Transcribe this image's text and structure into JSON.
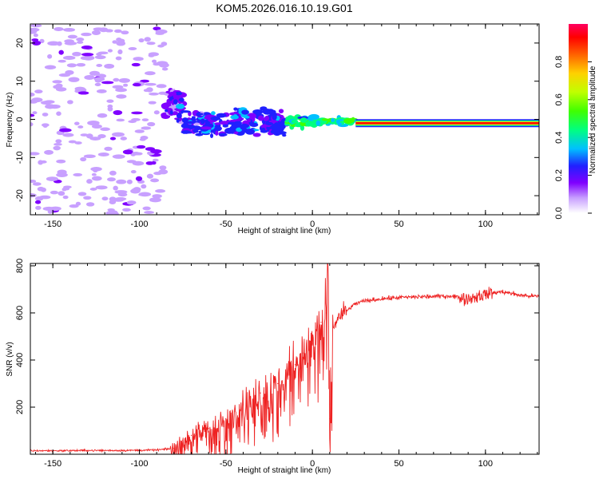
{
  "title": "KOM5.2026.016.10.19.G01",
  "chart_data": [
    {
      "type": "heatmap",
      "name": "spectrogram",
      "xlabel": "Height of straight line (km)",
      "ylabel": "Frequency (Hz)",
      "xlim": [
        -163,
        131
      ],
      "ylim": [
        -25,
        25
      ],
      "xticks": [
        -150,
        -100,
        -50,
        0,
        50,
        100
      ],
      "xtick_labels": [
        "-150",
        "-100",
        "-50",
        "0",
        "50",
        "100"
      ],
      "yticks": [
        -20,
        -10,
        0,
        10,
        20
      ],
      "ytick_labels": [
        "-20",
        "-10",
        "0",
        "10",
        "20"
      ],
      "colorbar": {
        "label": "Normalized spectral amplitude",
        "range": [
          0,
          1
        ],
        "ticks": [
          0,
          0.2,
          0.4,
          0.6,
          0.8
        ],
        "tick_labels": [
          "0.0",
          "0.2",
          "0.4",
          "0.6",
          "0.8"
        ],
        "colors": [
          "#ffffff",
          "#c8a0ff",
          "#8000ff",
          "#2020ff",
          "#00c0ff",
          "#00ff80",
          "#40ff00",
          "#c0ff00",
          "#ffd000",
          "#ff6000",
          "#ff0000",
          "#ff0060"
        ]
      },
      "features": [
        {
          "region": "noise",
          "x_range": [
            -163,
            -85
          ],
          "freq_range": [
            -25,
            25
          ],
          "amplitude": 0.05
        },
        {
          "region": "onset",
          "x_range": [
            -85,
            -75
          ],
          "freq_range": [
            -2,
            9
          ],
          "amplitude": 0.2
        },
        {
          "region": "broad",
          "x_range": [
            -75,
            -15
          ],
          "freq_range": [
            -6,
            4
          ],
          "amplitude": 0.25
        },
        {
          "region": "narrowing",
          "x_range": [
            -15,
            25
          ],
          "freq_range": [
            -3,
            2
          ],
          "amplitude": 0.45
        },
        {
          "region": "tone",
          "x_range": [
            25,
            131
          ],
          "freq": -1,
          "amplitude": 0.95
        }
      ]
    },
    {
      "type": "line",
      "name": "snr",
      "xlabel": "Height of straight line (km)",
      "ylabel": "SNR (v/v)",
      "xlim": [
        -163,
        131
      ],
      "ylim": [
        0,
        810
      ],
      "xticks": [
        -150,
        -100,
        -50,
        0,
        50,
        100
      ],
      "xtick_labels": [
        "-150",
        "-100",
        "-50",
        "0",
        "50",
        "100"
      ],
      "yticks": [
        200,
        400,
        600,
        800
      ],
      "ytick_labels": [
        "200",
        "400",
        "600",
        "800"
      ],
      "color": "#ee2222",
      "series": [
        {
          "name": "SNR",
          "x": [
            -163,
            -150,
            -130,
            -110,
            -90,
            -80,
            -75,
            -70,
            -60,
            -50,
            -40,
            -30,
            -20,
            -10,
            -5,
            0,
            5,
            8,
            9,
            10,
            12,
            15,
            20,
            25,
            30,
            40,
            50,
            60,
            70,
            80,
            90,
            100,
            110,
            120,
            131
          ],
          "values": [
            15,
            15,
            16,
            16,
            18,
            25,
            60,
            80,
            110,
            150,
            210,
            260,
            300,
            380,
            430,
            470,
            560,
            600,
            810,
            150,
            540,
            580,
            610,
            640,
            650,
            660,
            665,
            668,
            670,
            672,
            660,
            680,
            690,
            675,
            670
          ]
        }
      ]
    }
  ]
}
